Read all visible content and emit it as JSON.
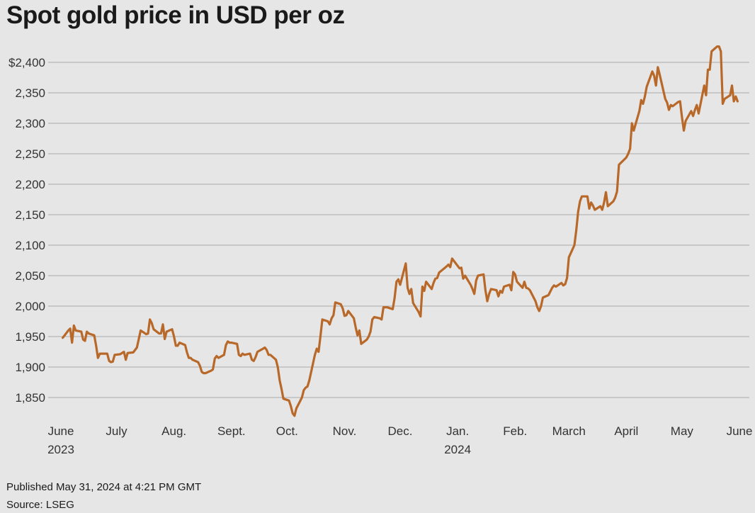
{
  "chart_data": {
    "type": "line",
    "title": "Spot gold price in USD per oz",
    "ylim": [
      1800,
      2450
    ],
    "y_ticks": [
      {
        "value": 2400,
        "label": "$2,400"
      },
      {
        "value": 2350,
        "label": "2,350"
      },
      {
        "value": 2300,
        "label": "2,300"
      },
      {
        "value": 2250,
        "label": "2,250"
      },
      {
        "value": 2200,
        "label": "2,200"
      },
      {
        "value": 2150,
        "label": "2,150"
      },
      {
        "value": 2100,
        "label": "2,100"
      },
      {
        "value": 2050,
        "label": "2,050"
      },
      {
        "value": 2000,
        "label": "2,000"
      },
      {
        "value": 1950,
        "label": "1,950"
      },
      {
        "value": 1900,
        "label": "1,900"
      },
      {
        "value": 1850,
        "label": "1,850"
      }
    ],
    "x_ticks": [
      {
        "date": "2023-06-01",
        "label": "June",
        "sublabel": "2023"
      },
      {
        "date": "2023-07-01",
        "label": "July",
        "sublabel": ""
      },
      {
        "date": "2023-08-01",
        "label": "Aug.",
        "sublabel": ""
      },
      {
        "date": "2023-09-01",
        "label": "Sept.",
        "sublabel": ""
      },
      {
        "date": "2023-10-01",
        "label": "Oct.",
        "sublabel": ""
      },
      {
        "date": "2023-11-01",
        "label": "Nov.",
        "sublabel": ""
      },
      {
        "date": "2023-12-01",
        "label": "Dec.",
        "sublabel": ""
      },
      {
        "date": "2024-01-01",
        "label": "Jan.",
        "sublabel": "2024"
      },
      {
        "date": "2024-02-01",
        "label": "Feb.",
        "sublabel": ""
      },
      {
        "date": "2024-03-01",
        "label": "March",
        "sublabel": ""
      },
      {
        "date": "2024-04-01",
        "label": "April",
        "sublabel": ""
      },
      {
        "date": "2024-05-01",
        "label": "May",
        "sublabel": ""
      },
      {
        "date": "2024-06-01",
        "label": "June",
        "sublabel": ""
      }
    ],
    "xlim": [
      "2023-06-01",
      "2024-06-01"
    ],
    "grid": true,
    "series": [
      {
        "color": "#b8692a",
        "x": [
          "2023-06-02",
          "2023-06-05",
          "2023-06-06",
          "2023-06-07",
          "2023-06-08",
          "2023-06-09",
          "2023-06-12",
          "2023-06-13",
          "2023-06-14",
          "2023-06-15",
          "2023-06-16",
          "2023-06-19",
          "2023-06-20",
          "2023-06-21",
          "2023-06-22",
          "2023-06-23",
          "2023-06-26",
          "2023-06-27",
          "2023-06-28",
          "2023-06-29",
          "2023-06-30",
          "2023-07-03",
          "2023-07-05",
          "2023-07-06",
          "2023-07-07",
          "2023-07-10",
          "2023-07-12",
          "2023-07-14",
          "2023-07-17",
          "2023-07-18",
          "2023-07-19",
          "2023-07-20",
          "2023-07-21",
          "2023-07-24",
          "2023-07-25",
          "2023-07-26",
          "2023-07-27",
          "2023-07-28",
          "2023-07-31",
          "2023-08-01",
          "2023-08-02",
          "2023-08-03",
          "2023-08-04",
          "2023-08-07",
          "2023-08-08",
          "2023-08-09",
          "2023-08-10",
          "2023-08-11",
          "2023-08-14",
          "2023-08-15",
          "2023-08-16",
          "2023-08-17",
          "2023-08-18",
          "2023-08-21",
          "2023-08-22",
          "2023-08-23",
          "2023-08-24",
          "2023-08-25",
          "2023-08-28",
          "2023-08-29",
          "2023-08-30",
          "2023-08-31",
          "2023-09-01",
          "2023-09-04",
          "2023-09-05",
          "2023-09-06",
          "2023-09-07",
          "2023-09-08",
          "2023-09-11",
          "2023-09-12",
          "2023-09-13",
          "2023-09-14",
          "2023-09-15",
          "2023-09-18",
          "2023-09-19",
          "2023-09-20",
          "2023-09-21",
          "2023-09-22",
          "2023-09-25",
          "2023-09-26",
          "2023-09-27",
          "2023-09-28",
          "2023-09-29",
          "2023-10-02",
          "2023-10-03",
          "2023-10-04",
          "2023-10-05",
          "2023-10-06",
          "2023-10-09",
          "2023-10-10",
          "2023-10-11",
          "2023-10-12",
          "2023-10-13",
          "2023-10-16",
          "2023-10-17",
          "2023-10-18",
          "2023-10-19",
          "2023-10-20",
          "2023-10-23",
          "2023-10-24",
          "2023-10-25",
          "2023-10-26",
          "2023-10-27",
          "2023-10-30",
          "2023-10-31",
          "2023-11-01",
          "2023-11-02",
          "2023-11-03",
          "2023-11-06",
          "2023-11-07",
          "2023-11-08",
          "2023-11-09",
          "2023-11-10",
          "2023-11-13",
          "2023-11-14",
          "2023-11-15",
          "2023-11-16",
          "2023-11-17",
          "2023-11-20",
          "2023-11-21",
          "2023-11-22",
          "2023-11-24",
          "2023-11-27",
          "2023-11-28",
          "2023-11-29",
          "2023-11-30",
          "2023-12-01",
          "2023-12-04",
          "2023-12-05",
          "2023-12-06",
          "2023-12-07",
          "2023-12-08",
          "2023-12-11",
          "2023-12-12",
          "2023-12-13",
          "2023-12-14",
          "2023-12-15",
          "2023-12-18",
          "2023-12-19",
          "2023-12-20",
          "2023-12-21",
          "2023-12-22",
          "2023-12-26",
          "2023-12-27",
          "2023-12-28",
          "2023-12-29",
          "2024-01-02",
          "2024-01-03",
          "2024-01-04",
          "2024-01-05",
          "2024-01-08",
          "2024-01-09",
          "2024-01-10",
          "2024-01-11",
          "2024-01-12",
          "2024-01-15",
          "2024-01-16",
          "2024-01-17",
          "2024-01-18",
          "2024-01-19",
          "2024-01-22",
          "2024-01-23",
          "2024-01-24",
          "2024-01-25",
          "2024-01-26",
          "2024-01-29",
          "2024-01-30",
          "2024-01-31",
          "2024-02-01",
          "2024-02-02",
          "2024-02-05",
          "2024-02-06",
          "2024-02-07",
          "2024-02-08",
          "2024-02-09",
          "2024-02-12",
          "2024-02-13",
          "2024-02-14",
          "2024-02-15",
          "2024-02-16",
          "2024-02-19",
          "2024-02-20",
          "2024-02-21",
          "2024-02-22",
          "2024-02-23",
          "2024-02-26",
          "2024-02-27",
          "2024-02-28",
          "2024-02-29",
          "2024-03-01",
          "2024-03-04",
          "2024-03-05",
          "2024-03-06",
          "2024-03-07",
          "2024-03-08",
          "2024-03-11",
          "2024-03-12",
          "2024-03-13",
          "2024-03-14",
          "2024-03-15",
          "2024-03-18",
          "2024-03-19",
          "2024-03-20",
          "2024-03-21",
          "2024-03-22",
          "2024-03-25",
          "2024-03-26",
          "2024-03-27",
          "2024-03-28",
          "2024-04-01",
          "2024-04-02",
          "2024-04-03",
          "2024-04-04",
          "2024-04-05",
          "2024-04-08",
          "2024-04-09",
          "2024-04-10",
          "2024-04-11",
          "2024-04-12",
          "2024-04-15",
          "2024-04-16",
          "2024-04-17",
          "2024-04-18",
          "2024-04-19",
          "2024-04-22",
          "2024-04-23",
          "2024-04-24",
          "2024-04-25",
          "2024-04-26",
          "2024-04-29",
          "2024-04-30",
          "2024-05-01",
          "2024-05-02",
          "2024-05-03",
          "2024-05-06",
          "2024-05-07",
          "2024-05-08",
          "2024-05-09",
          "2024-05-10",
          "2024-05-13",
          "2024-05-14",
          "2024-05-15",
          "2024-05-16",
          "2024-05-17",
          "2024-05-20",
          "2024-05-21",
          "2024-05-22",
          "2024-05-23",
          "2024-05-24",
          "2024-05-27",
          "2024-05-28",
          "2024-05-29",
          "2024-05-30",
          "2024-05-31"
        ],
        "y": [
          1948,
          1960,
          1963,
          1940,
          1968,
          1960,
          1958,
          1945,
          1943,
          1958,
          1955,
          1952,
          1935,
          1915,
          1922,
          1922,
          1922,
          1910,
          1908,
          1909,
          1920,
          1921,
          1925,
          1912,
          1923,
          1924,
          1932,
          1960,
          1954,
          1955,
          1978,
          1972,
          1962,
          1955,
          1955,
          1970,
          1946,
          1958,
          1962,
          1950,
          1935,
          1935,
          1940,
          1936,
          1924,
          1915,
          1915,
          1912,
          1908,
          1902,
          1892,
          1890,
          1890,
          1894,
          1896,
          1914,
          1918,
          1915,
          1920,
          1936,
          1942,
          1940,
          1940,
          1938,
          1920,
          1918,
          1922,
          1920,
          1922,
          1912,
          1910,
          1916,
          1925,
          1930,
          1932,
          1928,
          1920,
          1920,
          1912,
          1900,
          1878,
          1864,
          1848,
          1845,
          1836,
          1824,
          1820,
          1832,
          1850,
          1862,
          1866,
          1868,
          1878,
          1920,
          1930,
          1925,
          1950,
          1978,
          1975,
          1970,
          1980,
          1985,
          2006,
          2003,
          1996,
          1984,
          1985,
          1992,
          1980,
          1965,
          1952,
          1960,
          1938,
          1945,
          1950,
          1958,
          1978,
          1982,
          1980,
          1978,
          1998,
          1998,
          1995,
          2013,
          2040,
          2044,
          2035,
          2070,
          2030,
          2020,
          2028,
          2005,
          1990,
          1983,
          2032,
          2025,
          2040,
          2028,
          2038,
          2045,
          2046,
          2055,
          2065,
          2068,
          2064,
          2078,
          2062,
          2063,
          2045,
          2050,
          2035,
          2028,
          2020,
          2042,
          2050,
          2052,
          2026,
          2008,
          2020,
          2028,
          2026,
          2016,
          2025,
          2022,
          2032,
          2035,
          2026,
          2056,
          2052,
          2040,
          2030,
          2040,
          2030,
          2029,
          2026,
          2008,
          1998,
          1992,
          2000,
          2014,
          2018,
          2024,
          2030,
          2034,
          2032,
          2038,
          2034,
          2036,
          2046,
          2080,
          2100,
          2125,
          2155,
          2172,
          2180,
          2180,
          2160,
          2170,
          2165,
          2158,
          2164,
          2158,
          2170,
          2187,
          2164,
          2172,
          2178,
          2188,
          2232,
          2244,
          2250,
          2258,
          2300,
          2288,
          2320,
          2338,
          2332,
          2344,
          2360,
          2385,
          2378,
          2362,
          2392,
          2380,
          2340,
          2334,
          2322,
          2330,
          2328,
          2335,
          2336,
          2310,
          2288,
          2304,
          2320,
          2312,
          2322,
          2330,
          2316,
          2362,
          2346,
          2388,
          2388,
          2418,
          2426,
          2426,
          2418,
          2332,
          2340,
          2346,
          2362,
          2336,
          2344,
          2336
        ]
      }
    ]
  },
  "footer": {
    "published": "Published May 31, 2024 at 4:21 PM GMT",
    "source": "Source: LSEG"
  }
}
